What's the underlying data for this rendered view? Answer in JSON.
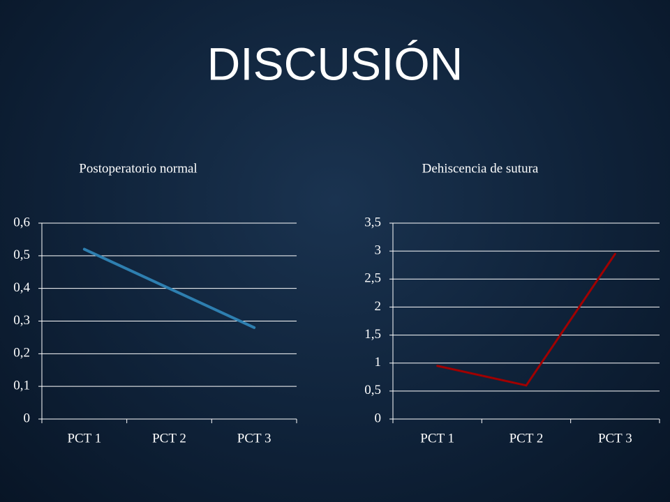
{
  "title": "DISCUSIÓN",
  "chart_data": [
    {
      "type": "line",
      "title": "Postoperatorio normal",
      "categories": [
        "PCT 1",
        "PCT 2",
        "PCT 3"
      ],
      "values": [
        0.52,
        0.4,
        0.28
      ],
      "color": "#2e7fb0",
      "ylim": [
        0,
        0.6
      ],
      "yticks": [
        0,
        {
          "value": 0.1,
          "label": "0,1"
        },
        {
          "value": 0.2,
          "label": "0,2"
        },
        {
          "value": 0.3,
          "label": "0,3"
        },
        {
          "value": 0.4,
          "label": "0,4"
        },
        {
          "value": 0.5,
          "label": "0,5"
        },
        {
          "value": 0.6,
          "label": "0,6"
        }
      ],
      "grid": true
    },
    {
      "type": "line",
      "title": "Dehiscencia de sutura",
      "categories": [
        "PCT 1",
        "PCT 2",
        "PCT 3"
      ],
      "values": [
        0.95,
        0.6,
        2.95
      ],
      "color": "#a00000",
      "ylim": [
        0,
        3.5
      ],
      "yticks": [
        0,
        {
          "value": 0.5,
          "label": "0,5"
        },
        1,
        {
          "value": 1.5,
          "label": "1,5"
        },
        2,
        {
          "value": 2.5,
          "label": "2,5"
        },
        3,
        {
          "value": 3.5,
          "label": "3,5"
        }
      ],
      "grid": true
    }
  ]
}
